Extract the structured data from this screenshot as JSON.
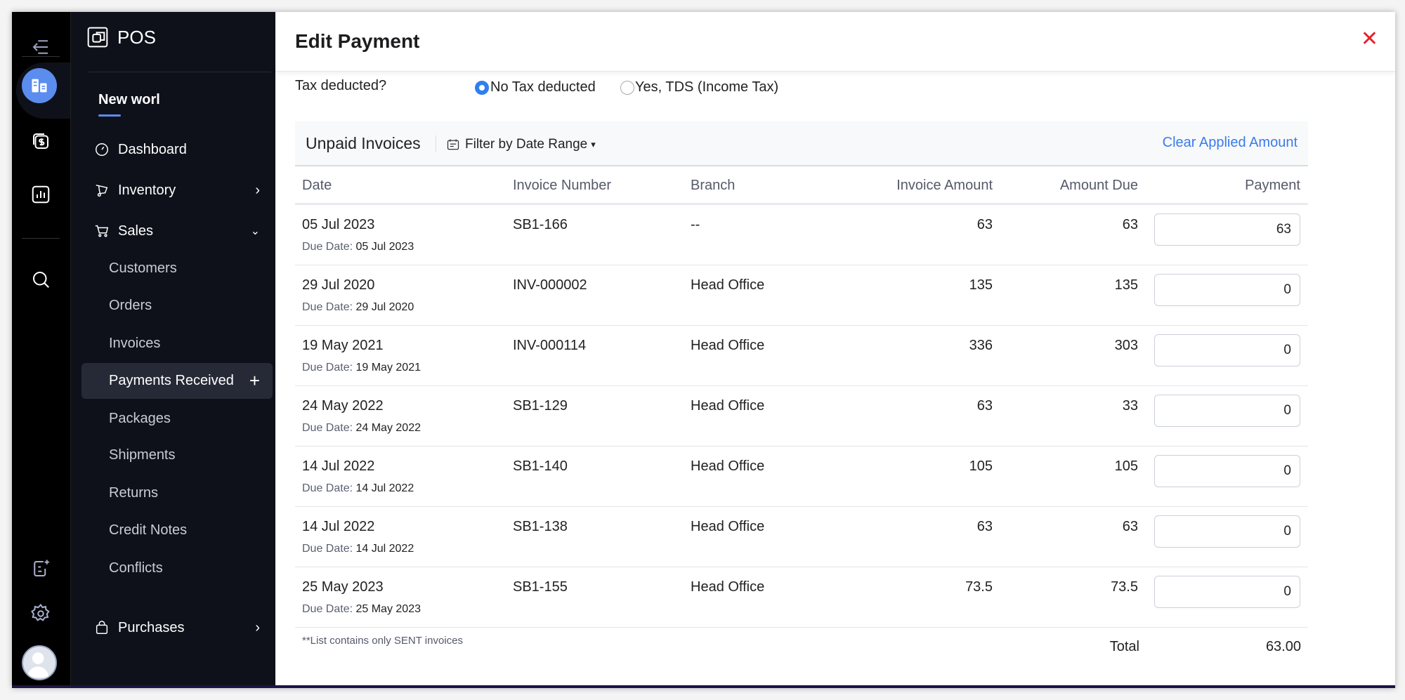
{
  "app": {
    "name": "POS",
    "org": "New worl"
  },
  "nav": {
    "items": [
      {
        "label": "Dashboard"
      },
      {
        "label": "Inventory"
      },
      {
        "label": "Sales"
      },
      {
        "label": "Customers"
      },
      {
        "label": "Orders"
      },
      {
        "label": "Invoices"
      },
      {
        "label": "Payments Received"
      },
      {
        "label": "Packages"
      },
      {
        "label": "Shipments"
      },
      {
        "label": "Returns"
      },
      {
        "label": "Credit Notes"
      },
      {
        "label": "Conflicts"
      },
      {
        "label": "Purchases"
      }
    ],
    "active": "Payments Received"
  },
  "dialog": {
    "title": "Edit Payment",
    "close": "✕"
  },
  "tax": {
    "label": "Tax deducted?",
    "options": [
      "No Tax deducted",
      "Yes, TDS (Income Tax)"
    ],
    "selected": "No Tax deducted"
  },
  "table": {
    "title": "Unpaid Invoices",
    "filter": "Filter by Date Range",
    "clear": "Clear Applied Amount",
    "headers": [
      "Date",
      "Invoice Number",
      "Branch",
      "Invoice Amount",
      "Amount Due",
      "Payment"
    ],
    "due_label": "Due Date",
    "rows": [
      {
        "date": "05 Jul 2023",
        "due": "05 Jul 2023",
        "number": "SB1-166",
        "branch": "--",
        "amount": "63",
        "due_amount": "63",
        "payment": "63"
      },
      {
        "date": "29 Jul 2020",
        "due": "29 Jul 2020",
        "number": "INV-000002",
        "branch": "Head Office",
        "amount": "135",
        "due_amount": "135",
        "payment": "0"
      },
      {
        "date": "19 May 2021",
        "due": "19 May 2021",
        "number": "INV-000114",
        "branch": "Head Office",
        "amount": "336",
        "due_amount": "303",
        "payment": "0"
      },
      {
        "date": "24 May 2022",
        "due": "24 May 2022",
        "number": "SB1-129",
        "branch": "Head Office",
        "amount": "63",
        "due_amount": "33",
        "payment": "0"
      },
      {
        "date": "14 Jul 2022",
        "due": "14 Jul 2022",
        "number": "SB1-140",
        "branch": "Head Office",
        "amount": "105",
        "due_amount": "105",
        "payment": "0"
      },
      {
        "date": "14 Jul 2022",
        "due": "14 Jul 2022",
        "number": "SB1-138",
        "branch": "Head Office",
        "amount": "63",
        "due_amount": "63",
        "payment": "0"
      },
      {
        "date": "25 May 2023",
        "due": "25 May 2023",
        "number": "SB1-155",
        "branch": "Head Office",
        "amount": "73.5",
        "due_amount": "73.5",
        "payment": "0"
      }
    ],
    "note": "**List contains only SENT invoices",
    "total_label": "Total",
    "total": "63.00"
  },
  "colors": {
    "accent": "#2f80ed",
    "link": "#3a7bea",
    "close": "#e8202a",
    "sidebar": "#0e111a"
  }
}
